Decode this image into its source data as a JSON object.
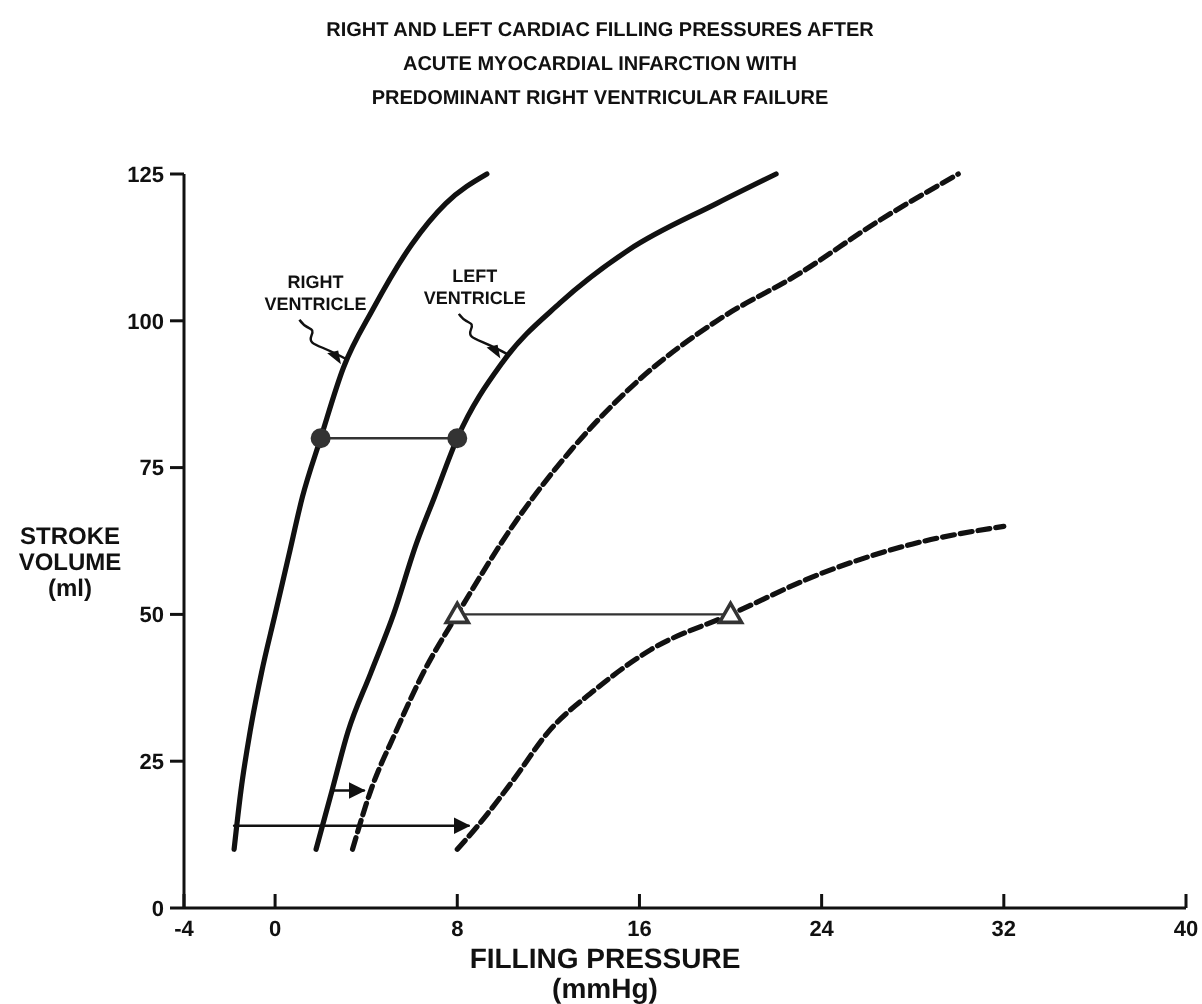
{
  "chart_data": {
    "type": "line",
    "title": "RIGHT AND LEFT CARDIAC FILLING PRESSURES AFTER\nACUTE MYOCARDIAL INFARCTION WITH\nPREDOMINANT RIGHT VENTRICULAR FAILURE",
    "xlabel": "FILLING PRESSURE\n(mmHg)",
    "ylabel": "STROKE\nVOLUME\n(ml)",
    "xlim": [
      -4,
      40
    ],
    "ylim": [
      0,
      125
    ],
    "xticks": [
      -4,
      0,
      8,
      16,
      24,
      32,
      40
    ],
    "yticks": [
      0,
      25,
      50,
      75,
      100,
      125
    ],
    "grid": false,
    "series": [
      {
        "name": "RIGHT\nVENTRICLE",
        "color": "#111111",
        "line_style": "solid",
        "marker": "none",
        "x": [
          -1.8,
          -1.5,
          -1.1,
          -0.6,
          0,
          0.6,
          1.2,
          2,
          3,
          4.3,
          6,
          7.5,
          9.3
        ],
        "values": [
          10,
          20,
          30,
          40,
          50,
          60,
          70,
          80,
          92,
          102,
          113,
          120,
          125
        ]
      },
      {
        "name": "LEFT\nVENTRICLE",
        "color": "#111111",
        "line_style": "solid",
        "marker": "none",
        "x": [
          1.8,
          2.5,
          3.2,
          4.2,
          5.2,
          6.2,
          7,
          8,
          10,
          12.5,
          15.5,
          19.4,
          22
        ],
        "values": [
          10,
          20,
          30,
          40,
          50,
          62,
          70,
          80,
          93,
          103,
          112,
          120,
          125
        ]
      },
      {
        "color": "#111111",
        "line_style": "dashed",
        "marker": "none",
        "x": [
          3.4,
          4.2,
          5.3,
          6.5,
          8,
          10.6,
          13,
          16,
          19.4,
          23,
          26.5,
          30
        ],
        "values": [
          10,
          20,
          30,
          40,
          50,
          66,
          78,
          90,
          100,
          108,
          117,
          125
        ]
      },
      {
        "color": "#111111",
        "line_style": "dashed",
        "marker": "none",
        "x": [
          8,
          8.9,
          10.5,
          12,
          14,
          16.5,
          20,
          24,
          28,
          32
        ],
        "values": [
          10,
          14,
          22,
          30,
          37,
          44,
          50,
          57,
          62,
          65
        ]
      },
      {
        "color": "#333333",
        "line_style": "solid",
        "marker": "circle",
        "x": [
          2,
          8
        ],
        "values": [
          80,
          80
        ]
      },
      {
        "color": "#333333",
        "line_style": "solid",
        "marker": "triangle",
        "x": [
          8,
          20
        ],
        "values": [
          50,
          50
        ]
      },
      {
        "color": "#111111",
        "line_style": "solid",
        "marker": "none",
        "x": [
          -1.8,
          8.5
        ],
        "values": [
          14,
          14
        ]
      },
      {
        "color": "#111111",
        "line_style": "solid",
        "marker": "none",
        "x": [
          2.5,
          3.9
        ],
        "values": [
          20,
          20
        ]
      }
    ]
  }
}
